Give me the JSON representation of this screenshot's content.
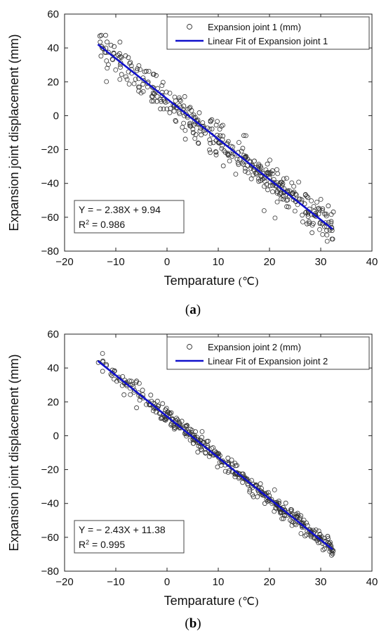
{
  "chart_data": [
    {
      "type": "scatter",
      "panel_label": "a",
      "xlabel": "Temparature",
      "xunit": "(℃)",
      "ylabel": "Expansion joint displacement (mm)",
      "xlim": [
        -20,
        40
      ],
      "ylim": [
        -80,
        60
      ],
      "xticks": [
        -20,
        -10,
        0,
        10,
        20,
        30,
        40
      ],
      "yticks": [
        -80,
        -60,
        -40,
        -20,
        0,
        20,
        40,
        60
      ],
      "legend_position": "top-right",
      "series": [
        {
          "name": "Expansion joint 1 (mm)",
          "kind": "scatter",
          "x_range": [
            -13.5,
            32.5
          ],
          "noise_mm": 5
        },
        {
          "name": "Linear Fit of Expansion joint 1",
          "kind": "line",
          "color": "#1010cc",
          "slope": -2.38,
          "intercept": 9.94,
          "x_range": [
            -13.5,
            32.3
          ]
        }
      ],
      "equation": "Y = − 2.38X + 9.94",
      "r2_label": "R",
      "r2_sup": "2",
      "r2_value": " = 0.986"
    },
    {
      "type": "scatter",
      "panel_label": "b",
      "xlabel": "Temparature",
      "xunit": "(℃)",
      "ylabel": "Expansion joint displacement (mm)",
      "xlim": [
        -20,
        40
      ],
      "ylim": [
        -80,
        60
      ],
      "xticks": [
        -20,
        -10,
        0,
        10,
        20,
        30,
        40
      ],
      "yticks": [
        -80,
        -60,
        -40,
        -20,
        0,
        20,
        40,
        60
      ],
      "legend_position": "top-right",
      "series": [
        {
          "name": "Expansion joint 2 (mm)",
          "kind": "scatter",
          "x_range": [
            -13.5,
            32.5
          ],
          "noise_mm": 2.5
        },
        {
          "name": "Linear Fit of Expansion joint 2",
          "kind": "line",
          "color": "#1010cc",
          "slope": -2.43,
          "intercept": 11.38,
          "x_range": [
            -13.5,
            32.3
          ]
        }
      ],
      "equation": "Y = − 2.43X + 11.38",
      "r2_label": "R",
      "r2_sup": "2",
      "r2_value": " = 0.995"
    }
  ],
  "captions": {
    "a_open": "(",
    "a_letter": "a",
    "a_close": ")",
    "b_open": "(",
    "b_letter": "b",
    "b_close": ")"
  }
}
